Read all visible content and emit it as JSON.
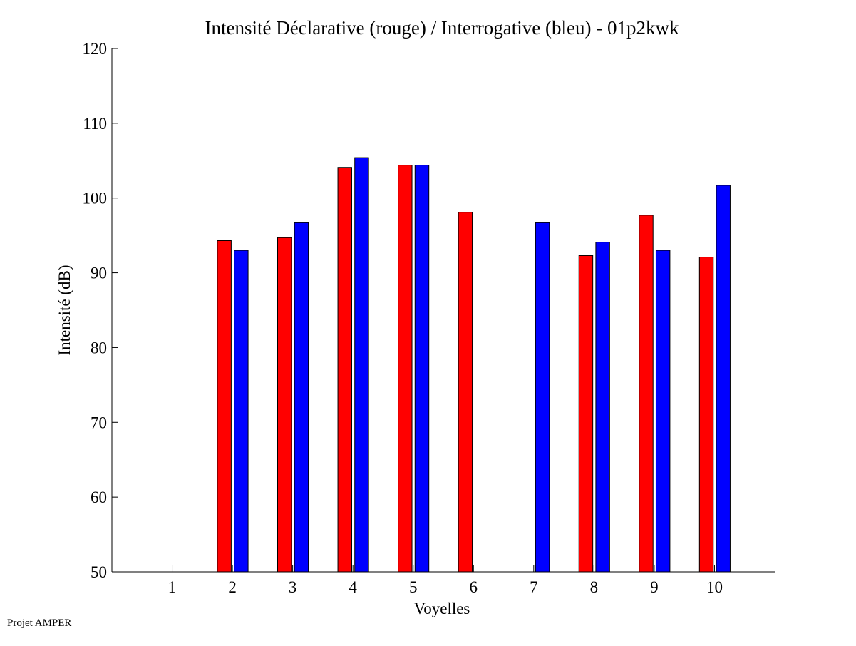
{
  "chart_data": {
    "type": "bar",
    "title": "Intensité Déclarative (rouge) / Interrogative (bleu) - 01p2kwk",
    "xlabel": "Voyelles",
    "ylabel": "Intensité (dB)",
    "categories": [
      "1",
      "2",
      "3",
      "4",
      "5",
      "6",
      "7",
      "8",
      "9",
      "10"
    ],
    "ylim": [
      50,
      120
    ],
    "yticks": [
      50,
      60,
      70,
      80,
      90,
      100,
      110,
      120
    ],
    "xlim": [
      0,
      11
    ],
    "grid": false,
    "series": [
      {
        "name": "Déclarative",
        "color": "#ff0000",
        "values": [
          null,
          94.3,
          94.7,
          104.1,
          104.4,
          98.1,
          null,
          92.3,
          97.7,
          92.1
        ]
      },
      {
        "name": "Interrogative",
        "color": "#0000ff",
        "values": [
          null,
          93.0,
          96.7,
          105.4,
          104.4,
          null,
          96.7,
          94.1,
          93.0,
          101.7
        ]
      }
    ]
  },
  "footer": "Projet AMPER"
}
